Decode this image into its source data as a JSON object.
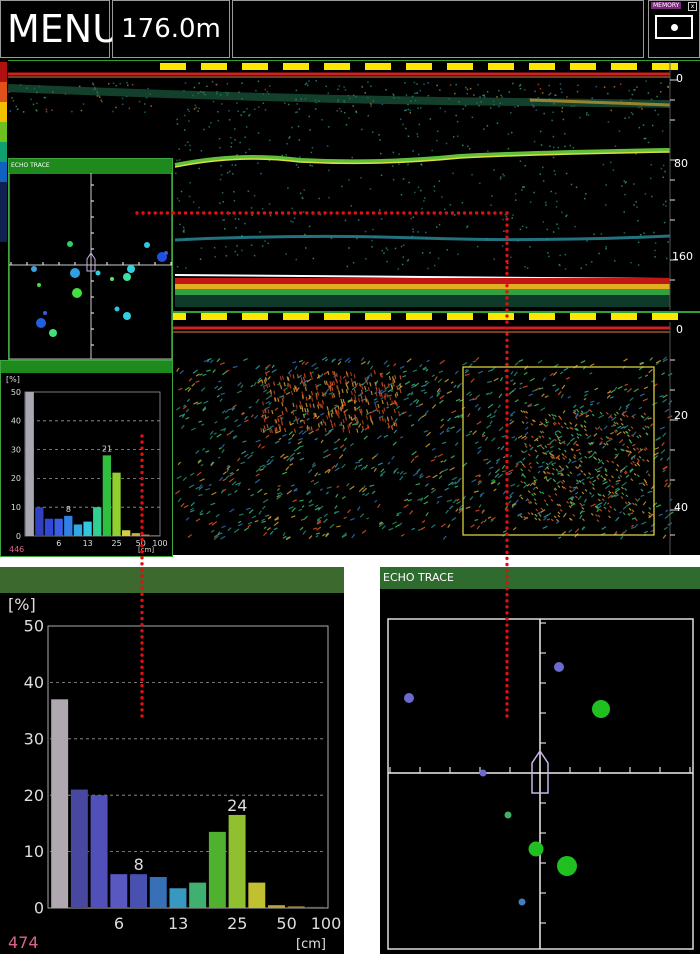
{
  "header": {
    "menu_label": "MENU",
    "range_value": "176.0m",
    "memory_label": "MEMORY",
    "memory_close": "x"
  },
  "echo_display": {
    "upper_depth_scale": [
      "0",
      "80",
      "160"
    ],
    "lower_depth_scale": [
      "0",
      "20",
      "40"
    ]
  },
  "small_trace": {
    "title": "ECHO TRACE",
    "icon": "boat-icon"
  },
  "small_histogram": {
    "y_unit": "[%]",
    "y_ticks": [
      "50",
      "40",
      "30",
      "20",
      "10",
      "0"
    ],
    "x_ticks": [
      "6",
      "13",
      "25",
      "50",
      "100"
    ],
    "x_unit": "[cm]",
    "count": "446",
    "peak_labels": [
      "8",
      "21"
    ]
  },
  "big_histogram": {
    "y_unit": "[%]",
    "y_ticks": [
      "50",
      "40",
      "30",
      "20",
      "10",
      "0"
    ],
    "x_ticks": [
      "6",
      "13",
      "25",
      "50",
      "100"
    ],
    "x_unit": "[cm]",
    "count": "474",
    "peak_labels": [
      "8",
      "24"
    ]
  },
  "big_trace": {
    "title": "ECHO TRACE",
    "icon": "boat-icon"
  },
  "colors": {
    "accent_green": "#1e8a1e",
    "callout_red": "#e01010",
    "scale_yellow": "#ffe600",
    "count_pink": "#d8648a"
  },
  "chart_data": [
    {
      "type": "bar",
      "title": "",
      "xlabel": "[cm]",
      "ylabel": "[%]",
      "ylim": [
        0,
        50
      ],
      "values": [
        50,
        10,
        6,
        6,
        7,
        4,
        5,
        10,
        28,
        22,
        2,
        1,
        0.5,
        0.3
      ],
      "bar_labels": {
        "4": "8",
        "8": "21"
      },
      "x_ticks": [
        "6",
        "13",
        "25",
        "50",
        "100"
      ],
      "grid": true,
      "count_label": "446"
    },
    {
      "type": "bar",
      "title": "",
      "xlabel": "[cm]",
      "ylabel": "[%]",
      "ylim": [
        0,
        50
      ],
      "values": [
        37,
        21,
        20,
        6,
        6,
        5.5,
        3.5,
        4.5,
        13.5,
        16.5,
        4.5,
        0.5,
        0.3,
        0.2
      ],
      "bar_labels": {
        "4": "8",
        "9": "24"
      },
      "x_ticks": [
        "6",
        "13",
        "25",
        "50",
        "100"
      ],
      "grid": true,
      "count_label": "474"
    }
  ]
}
